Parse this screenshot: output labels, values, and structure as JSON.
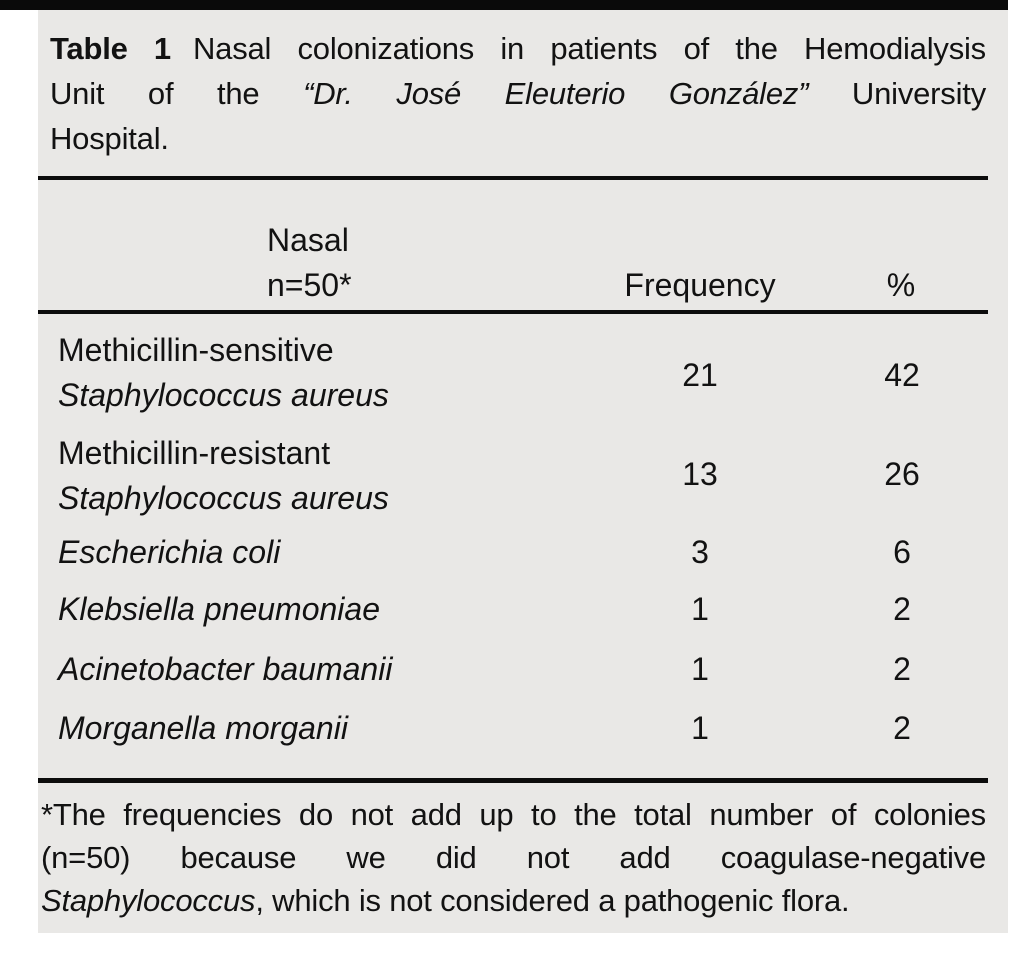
{
  "title": {
    "label": "Table 1",
    "line1_rest": "Nasal colonizations in patients of the Hemodialysis",
    "line2_pre": "Unit of the",
    "line2_italic": "“Dr. José Eleuterio González”",
    "line2_post": "University",
    "line3": "Hospital."
  },
  "header": {
    "col1_line1": "Nasal",
    "col1_line2": "n=50*",
    "col2": "Frequency",
    "col3": "%"
  },
  "rows": [
    {
      "name_line1": "Methicillin-sensitive",
      "name_line2": "Staphylococcus aureus",
      "frequency": "21",
      "percent": "42"
    },
    {
      "name_line1": "Methicillin-resistant",
      "name_line2": "Staphylococcus aureus",
      "frequency": "13",
      "percent": "26"
    },
    {
      "name_italic": "Escherichia coli",
      "frequency": "3",
      "percent": "6"
    },
    {
      "name_italic": "Klebsiella pneumoniae",
      "frequency": "1",
      "percent": "2"
    },
    {
      "name_italic": "Acinetobacter baumanii",
      "frequency": "1",
      "percent": "2"
    },
    {
      "name_italic": "Morganella morganii",
      "frequency": "1",
      "percent": "2"
    }
  ],
  "footnote": {
    "line1": "*The frequencies do not add up to the total number of colonies",
    "line2": "(n=50) because we did not add coagulase-negative",
    "line3_italic": "Staphylococcus",
    "line3_rest": ", which is not considered a pathogenic flora."
  },
  "colors": {
    "panel_bg": "#e9e8e6",
    "text": "#121212",
    "rule": "#0c0c0c",
    "top_bar": "#0a0a0a"
  }
}
